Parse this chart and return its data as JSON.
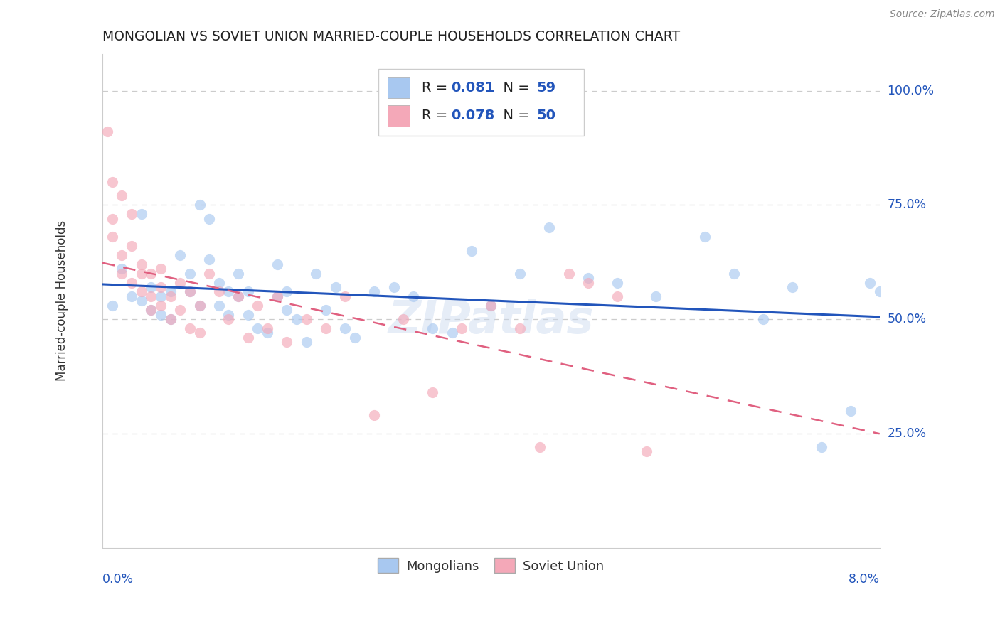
{
  "title": "MONGOLIAN VS SOVIET UNION MARRIED-COUPLE HOUSEHOLDS CORRELATION CHART",
  "source": "Source: ZipAtlas.com",
  "ylabel": "Married-couple Households",
  "xmin": 0.0,
  "xmax": 0.08,
  "ymin": 0.0,
  "ymax": 1.08,
  "yticks": [
    0.25,
    0.5,
    0.75,
    1.0
  ],
  "ytick_labels": [
    "25.0%",
    "50.0%",
    "75.0%",
    "100.0%"
  ],
  "legend_r1": "0.081",
  "legend_n1": "59",
  "legend_r2": "0.078",
  "legend_n2": "50",
  "color_mongolian": "#a8c8f0",
  "color_soviet": "#f4a8b8",
  "color_mongolian_line": "#2255bb",
  "color_soviet_line": "#e06080",
  "background_color": "#ffffff",
  "grid_color": "#cccccc",
  "title_color": "#222222",
  "axis_label_color": "#2255bb",
  "mongolian_x": [
    0.001,
    0.002,
    0.003,
    0.004,
    0.004,
    0.005,
    0.005,
    0.006,
    0.006,
    0.007,
    0.007,
    0.008,
    0.009,
    0.009,
    0.01,
    0.01,
    0.011,
    0.011,
    0.012,
    0.012,
    0.013,
    0.013,
    0.014,
    0.014,
    0.015,
    0.015,
    0.016,
    0.017,
    0.018,
    0.018,
    0.019,
    0.019,
    0.02,
    0.021,
    0.022,
    0.023,
    0.024,
    0.025,
    0.026,
    0.028,
    0.03,
    0.032,
    0.034,
    0.036,
    0.038,
    0.04,
    0.043,
    0.046,
    0.05,
    0.053,
    0.057,
    0.062,
    0.065,
    0.068,
    0.071,
    0.074,
    0.077,
    0.079,
    0.08
  ],
  "mongolian_y": [
    0.53,
    0.61,
    0.55,
    0.73,
    0.54,
    0.52,
    0.57,
    0.55,
    0.51,
    0.56,
    0.5,
    0.64,
    0.6,
    0.56,
    0.53,
    0.75,
    0.72,
    0.63,
    0.58,
    0.53,
    0.56,
    0.51,
    0.6,
    0.55,
    0.56,
    0.51,
    0.48,
    0.47,
    0.62,
    0.55,
    0.56,
    0.52,
    0.5,
    0.45,
    0.6,
    0.52,
    0.57,
    0.48,
    0.46,
    0.56,
    0.57,
    0.55,
    0.48,
    0.47,
    0.65,
    0.53,
    0.6,
    0.7,
    0.59,
    0.58,
    0.55,
    0.68,
    0.6,
    0.5,
    0.57,
    0.22,
    0.3,
    0.58,
    0.56
  ],
  "soviet_x": [
    0.0005,
    0.001,
    0.001,
    0.001,
    0.002,
    0.002,
    0.002,
    0.003,
    0.003,
    0.003,
    0.004,
    0.004,
    0.004,
    0.005,
    0.005,
    0.005,
    0.006,
    0.006,
    0.006,
    0.007,
    0.007,
    0.008,
    0.008,
    0.009,
    0.009,
    0.01,
    0.01,
    0.011,
    0.012,
    0.013,
    0.014,
    0.015,
    0.016,
    0.017,
    0.018,
    0.019,
    0.021,
    0.023,
    0.025,
    0.028,
    0.031,
    0.034,
    0.037,
    0.04,
    0.043,
    0.045,
    0.048,
    0.05,
    0.053,
    0.056
  ],
  "soviet_y": [
    0.91,
    0.8,
    0.72,
    0.68,
    0.77,
    0.64,
    0.6,
    0.73,
    0.66,
    0.58,
    0.62,
    0.56,
    0.6,
    0.6,
    0.55,
    0.52,
    0.61,
    0.57,
    0.53,
    0.55,
    0.5,
    0.58,
    0.52,
    0.56,
    0.48,
    0.53,
    0.47,
    0.6,
    0.56,
    0.5,
    0.55,
    0.46,
    0.53,
    0.48,
    0.55,
    0.45,
    0.5,
    0.48,
    0.55,
    0.29,
    0.5,
    0.34,
    0.48,
    0.53,
    0.48,
    0.22,
    0.6,
    0.58,
    0.55,
    0.21
  ],
  "marker_size": 120,
  "marker_alpha": 0.65
}
